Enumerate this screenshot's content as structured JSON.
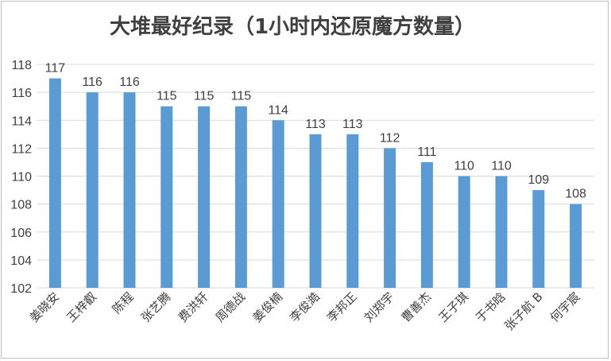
{
  "chart_data": {
    "type": "bar",
    "title": "大堆最好纪录（1小时内还原魔方数量）",
    "categories": [
      "姜晓安",
      "王梓叡",
      "陈程",
      "张艺腾",
      "费洪轩",
      "周德战",
      "姜俊楠",
      "李俊澔",
      "李邦正",
      "刘郑宇",
      "曹善杰",
      "王子琪",
      "于书晗",
      "张子航 B",
      "何宇宸"
    ],
    "values": [
      117,
      116,
      116,
      115,
      115,
      115,
      114,
      113,
      113,
      112,
      111,
      110,
      110,
      109,
      108
    ],
    "ylim": [
      102,
      118
    ],
    "yticks": [
      "102",
      "104",
      "106",
      "108",
      "110",
      "112",
      "114",
      "116",
      "118"
    ],
    "grid": true,
    "colors": {
      "bar": "#5b9bd5",
      "grid": "#d9d9d9",
      "text": "#404040"
    }
  }
}
